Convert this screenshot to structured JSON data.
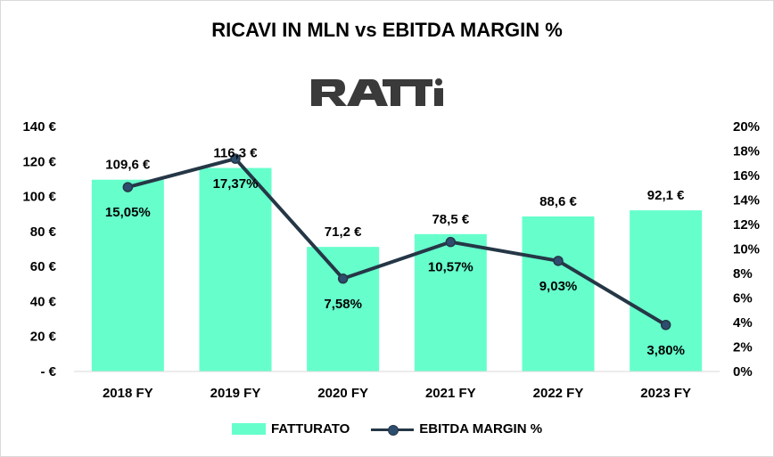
{
  "title": "RICAVI IN MLN vs EBITDA MARGIN %",
  "logo_text": "RATTI",
  "colors": {
    "bar": "#66ffcc",
    "line": "#253746",
    "marker": "#2e4d6e",
    "logo": "#3a3a3a"
  },
  "chart_data": {
    "type": "bar",
    "title": "RICAVI IN MLN vs EBITDA MARGIN %",
    "categories": [
      "2018 FY",
      "2019 FY",
      "2020 FY",
      "2021 FY",
      "2022 FY",
      "2023 FY"
    ],
    "series": [
      {
        "name": "FATTURATO",
        "type": "bar",
        "axis": "left",
        "values": [
          109.6,
          116.3,
          71.2,
          78.5,
          88.6,
          92.1
        ],
        "labels": [
          "109,6 €",
          "116,3 €",
          "71,2 €",
          "78,5 €",
          "88,6 €",
          "92,1 €"
        ]
      },
      {
        "name": "EBITDA MARGIN %",
        "type": "line",
        "axis": "right",
        "values": [
          15.05,
          17.37,
          7.58,
          10.57,
          9.03,
          3.8
        ],
        "labels": [
          "15,05%",
          "17,37%",
          "7,58%",
          "10,57%",
          "9,03%",
          "3,80%"
        ]
      }
    ],
    "y_left": {
      "ylim": [
        0,
        140
      ],
      "ticks": [
        0,
        20,
        40,
        60,
        80,
        100,
        120,
        140
      ],
      "tick_labels": [
        "- €",
        "20 €",
        "40 €",
        "60 €",
        "80 €",
        "100 €",
        "120 €",
        "140 €"
      ]
    },
    "y_right": {
      "ylim": [
        0,
        20
      ],
      "ticks": [
        0,
        2,
        4,
        6,
        8,
        10,
        12,
        14,
        16,
        18,
        20
      ],
      "tick_labels": [
        "0%",
        "2%",
        "4%",
        "6%",
        "8%",
        "10%",
        "12%",
        "14%",
        "16%",
        "18%",
        "20%"
      ]
    },
    "grid": false,
    "legend": {
      "position": "bottom",
      "items": [
        "FATTURATO",
        "EBITDA MARGIN %"
      ]
    }
  }
}
